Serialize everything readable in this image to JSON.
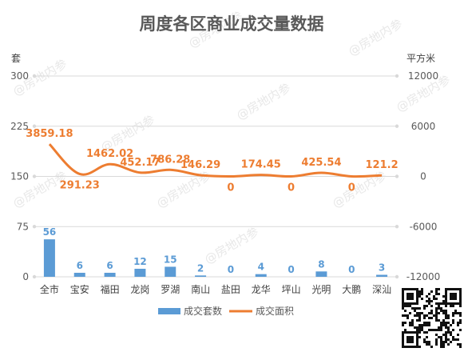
{
  "chart_data": {
    "type": "bar",
    "title": "周度各区商业成交量数据",
    "left_axis_label": "套",
    "right_axis_label": "平方米",
    "categories": [
      "全市",
      "宝安",
      "福田",
      "龙岗",
      "罗湖",
      "南山",
      "盐田",
      "龙华",
      "坪山",
      "光明",
      "大鹏",
      "深汕"
    ],
    "left_ticks": [
      "300",
      "225",
      "150",
      "75",
      "0"
    ],
    "right_ticks": [
      "12000",
      "6000",
      "0",
      "-6000",
      "-12000"
    ],
    "ylim_left": [
      0,
      300
    ],
    "ylim_right": [
      -12000,
      12000
    ],
    "series": [
      {
        "name": "成交套数",
        "type": "bar",
        "axis": "left",
        "color": "#5b9bd5",
        "values": [
          56,
          6,
          6,
          12,
          15,
          2,
          0,
          4,
          0,
          8,
          0,
          3
        ],
        "labels": [
          "56",
          "6",
          "6",
          "12",
          "15",
          "2",
          "0",
          "4",
          "0",
          "8",
          "0",
          "3"
        ]
      },
      {
        "name": "成交面积",
        "type": "line",
        "axis": "right",
        "color": "#ed7d31",
        "values": [
          3859.18,
          291.23,
          1462.02,
          452.17,
          786.28,
          146.29,
          0,
          174.45,
          0,
          425.54,
          0,
          121.2
        ],
        "labels": [
          "3859.18",
          "291.23",
          "1462.02",
          "452.17",
          "786.28",
          "146.29",
          "0",
          "174.45",
          "0",
          "425.54",
          "0",
          "121.2"
        ]
      }
    ],
    "grid": true,
    "legend": "bottom"
  },
  "watermark": "@房地内参",
  "qr_code_icon": "qr-code-icon"
}
